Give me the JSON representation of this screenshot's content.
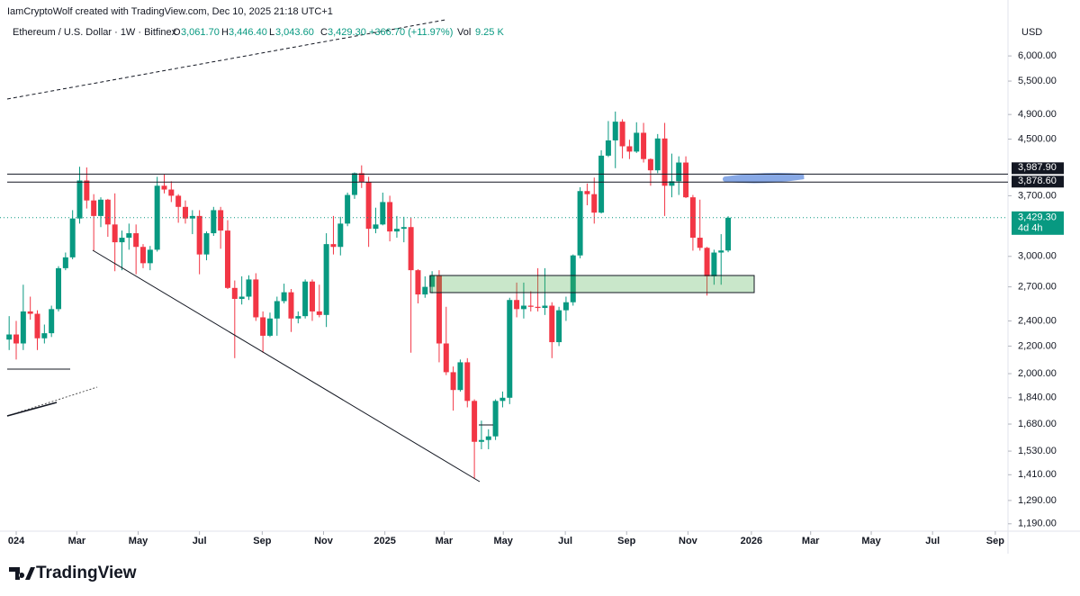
{
  "header": {
    "credit": "IamCryptoWolf created with TradingView.com, Dec 10, 2025 21:18 UTC+1"
  },
  "legend": {
    "symbol": "Ethereum / U.S. Dollar · 1W · Bitfinex",
    "o_label": "O",
    "o": "3,061.70",
    "h_label": "H",
    "h": "3,446.40",
    "l_label": "L",
    "l": "3,043.60",
    "c_label": "C",
    "c": "3,429.30",
    "change": "+366.70 (+11.97%)",
    "vol_label": "Vol",
    "vol": "9.25 K"
  },
  "footer": {
    "brand": "TradingView"
  },
  "chart_data": {
    "type": "candlestick",
    "y_unit": "USD",
    "log_scale": true,
    "up_color": "#089981",
    "down_color": "#f23645",
    "xlim": [
      -2.3,
      140.7
    ],
    "ylim": [
      1160,
      7280
    ],
    "xticks": [
      {
        "value": 0,
        "label": "024"
      },
      {
        "value": 8.6,
        "label": "Mar"
      },
      {
        "value": 17.3,
        "label": "May"
      },
      {
        "value": 26,
        "label": "Jul"
      },
      {
        "value": 34.9,
        "label": "Sep"
      },
      {
        "value": 43.6,
        "label": "Nov"
      },
      {
        "value": 52.3,
        "label": "2025"
      },
      {
        "value": 60.7,
        "label": "Mar"
      },
      {
        "value": 69.1,
        "label": "May"
      },
      {
        "value": 77.9,
        "label": "Jul"
      },
      {
        "value": 86.6,
        "label": "Sep"
      },
      {
        "value": 95.3,
        "label": "Nov"
      },
      {
        "value": 104.3,
        "label": "2026"
      },
      {
        "value": 112.7,
        "label": "Mar"
      },
      {
        "value": 121.3,
        "label": "May"
      },
      {
        "value": 130,
        "label": "Jul"
      },
      {
        "value": 138.9,
        "label": "Sep"
      }
    ],
    "yticks": [
      {
        "value": 6000,
        "label": "6,000.00"
      },
      {
        "value": 5500,
        "label": "5,500.00"
      },
      {
        "value": 4900,
        "label": "4,900.00"
      },
      {
        "value": 4500,
        "label": "4,500.00"
      },
      {
        "value": 3700,
        "label": "3,700.00"
      },
      {
        "value": 3000,
        "label": "3,000.00"
      },
      {
        "value": 2700,
        "label": "2,700.00"
      },
      {
        "value": 2400,
        "label": "2,400.00"
      },
      {
        "value": 2200,
        "label": "2,200.00"
      },
      {
        "value": 2000,
        "label": "2,000.00"
      },
      {
        "value": 1840,
        "label": "1,840.00"
      },
      {
        "value": 1680,
        "label": "1,680.00"
      },
      {
        "value": 1530,
        "label": "1,530.00"
      },
      {
        "value": 1410,
        "label": "1,410.00"
      },
      {
        "value": 1290,
        "label": "1,290.00"
      },
      {
        "value": 1190,
        "label": "1,190.00"
      }
    ],
    "levels": [
      {
        "value": 3987.9,
        "label": "3,987.90"
      },
      {
        "value": 3878.6,
        "label": "3,878.60"
      }
    ],
    "last_price": {
      "value": 3429.3,
      "label": "3,429.30",
      "countdown": "4d 4h"
    },
    "x": [
      -1,
      0,
      1,
      2,
      3,
      4,
      5,
      6,
      7,
      8,
      9,
      10,
      11,
      12,
      13,
      14,
      15,
      16,
      17,
      18,
      19,
      20,
      21,
      22,
      23,
      24,
      25,
      26,
      27,
      28,
      29,
      30,
      31,
      32,
      33,
      34,
      35,
      36,
      37,
      38,
      39,
      40,
      41,
      42,
      43,
      44,
      45,
      46,
      47,
      48,
      49,
      50,
      51,
      52,
      53,
      54,
      55,
      56,
      57,
      58,
      59,
      60,
      61,
      62,
      63,
      64,
      65,
      66,
      67,
      68,
      69,
      70,
      71,
      72,
      73,
      74,
      75,
      76,
      77,
      78,
      79,
      80,
      81,
      82,
      83,
      84,
      85,
      86,
      87,
      88,
      89,
      90,
      91,
      92,
      93,
      94,
      95,
      96,
      97,
      98,
      99,
      100,
      101
    ],
    "open": [
      2250,
      2290,
      2220,
      2480,
      2460,
      2260,
      2300,
      2500,
      2880,
      2990,
      3420,
      3900,
      3640,
      3450,
      3650,
      3350,
      3150,
      3200,
      3250,
      3100,
      2930,
      3070,
      3830,
      3780,
      3700,
      3560,
      3420,
      3450,
      3020,
      3250,
      3520,
      3280,
      2690,
      2590,
      2610,
      2770,
      2430,
      2280,
      2420,
      2570,
      2650,
      2420,
      2440,
      2750,
      2480,
      2450,
      3130,
      3100,
      3360,
      3710,
      4000,
      3880,
      3300,
      3350,
      3620,
      3270,
      3300,
      3320,
      2860,
      2630,
      2700,
      2810,
      2220,
      2010,
      1890,
      2080,
      1820,
      1580,
      1590,
      1610,
      1820,
      1840,
      2580,
      2500,
      2530,
      2520,
      2510,
      2530,
      2230,
      2490,
      2560,
      3010,
      3760,
      3720,
      3490,
      4250,
      4480,
      4780,
      4390,
      4310,
      4600,
      4200,
      4040,
      4510,
      3830,
      3890,
      4150,
      3680,
      3200,
      3090,
      2800,
      3040,
      3061.7
    ],
    "high": [
      2440,
      2400,
      2720,
      2610,
      2490,
      2370,
      2530,
      2900,
      3040,
      3520,
      4090,
      4080,
      3720,
      3680,
      3660,
      3730,
      3280,
      3360,
      3350,
      3130,
      3110,
      3950,
      3980,
      3890,
      3720,
      3640,
      3520,
      3520,
      3270,
      3560,
      3560,
      3400,
      2760,
      2800,
      2810,
      2830,
      2480,
      2470,
      2610,
      2730,
      2680,
      2480,
      2770,
      2770,
      2720,
      3250,
      3450,
      3440,
      3740,
      4010,
      4110,
      3950,
      3550,
      3740,
      3700,
      3450,
      3440,
      3430,
      2870,
      2800,
      2850,
      2860,
      2520,
      2050,
      2100,
      2110,
      1830,
      1700,
      1650,
      1830,
      1880,
      2600,
      2740,
      2740,
      2660,
      2880,
      2880,
      2560,
      2520,
      2610,
      3020,
      3810,
      3860,
      3940,
      4330,
      4790,
      4950,
      4820,
      4490,
      4770,
      4760,
      4210,
      4580,
      4760,
      4280,
      4240,
      4240,
      3710,
      3650,
      3100,
      3070,
      3240,
      3446.4
    ],
    "low": [
      2170,
      2100,
      2170,
      2410,
      2170,
      2220,
      2270,
      2480,
      2860,
      2970,
      3360,
      3540,
      3060,
      3320,
      3210,
      2850,
      2860,
      3070,
      2820,
      2880,
      2860,
      3050,
      3730,
      3620,
      3370,
      3360,
      3240,
      2820,
      2960,
      3220,
      3080,
      2680,
      2110,
      2540,
      2580,
      2400,
      2150,
      2270,
      2280,
      2550,
      2310,
      2380,
      2420,
      2400,
      2430,
      2350,
      3020,
      3010,
      3330,
      3660,
      3800,
      3100,
      3250,
      3340,
      3160,
      3200,
      3150,
      2150,
      2550,
      2600,
      2640,
      2080,
      1990,
      1760,
      1880,
      1780,
      1390,
      1540,
      1540,
      1590,
      1780,
      1800,
      2430,
      2420,
      2480,
      2480,
      2450,
      2110,
      2200,
      2400,
      2530,
      2980,
      3580,
      3360,
      3480,
      4230,
      4070,
      4210,
      4200,
      4290,
      4150,
      3830,
      4000,
      3450,
      3680,
      3710,
      3670,
      3060,
      3060,
      2620,
      2720,
      2720,
      3043.6
    ],
    "close": [
      2290,
      2220,
      2480,
      2460,
      2260,
      2300,
      2500,
      2880,
      2990,
      3420,
      3900,
      3640,
      3450,
      3650,
      3350,
      3150,
      3200,
      3250,
      3100,
      2930,
      3070,
      3830,
      3780,
      3700,
      3560,
      3420,
      3450,
      3020,
      3250,
      3520,
      3280,
      2690,
      2590,
      2610,
      2770,
      2430,
      2280,
      2420,
      2570,
      2650,
      2420,
      2440,
      2750,
      2480,
      2450,
      3130,
      3100,
      3360,
      3710,
      4000,
      3880,
      3300,
      3350,
      3620,
      3270,
      3300,
      3320,
      2860,
      2630,
      2700,
      2810,
      2220,
      2010,
      1890,
      2080,
      1820,
      1580,
      1590,
      1610,
      1820,
      1840,
      2580,
      2500,
      2530,
      2520,
      2510,
      2530,
      2230,
      2490,
      2560,
      3010,
      3760,
      3720,
      3490,
      4250,
      4480,
      4780,
      4390,
      4310,
      4600,
      4200,
      4040,
      4510,
      3830,
      3890,
      4150,
      3680,
      3200,
      3090,
      2800,
      3040,
      3061.7,
      3429.3
    ]
  }
}
